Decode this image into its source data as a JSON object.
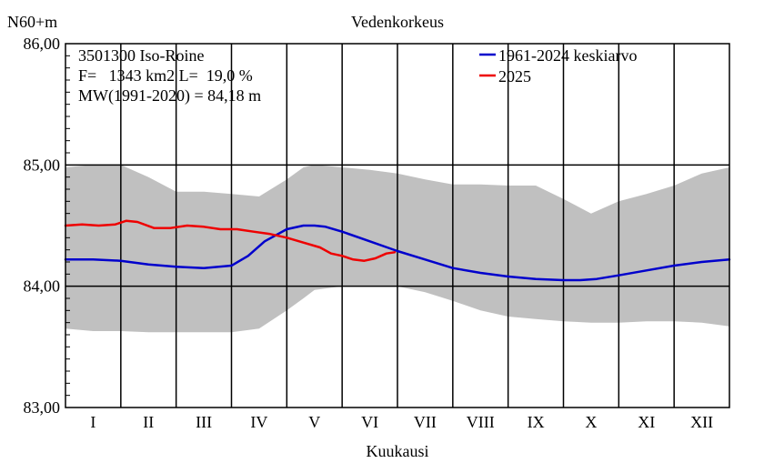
{
  "chart_data": {
    "type": "line",
    "title": "Vedenkorkeus",
    "ylabel": "N60+m",
    "xlabel": "Kuukausi",
    "ylim": [
      83.0,
      86.0
    ],
    "y_ticks": [
      "83,00",
      "84,00",
      "85,00",
      "86,00"
    ],
    "x_range": [
      0,
      12
    ],
    "months": [
      "I",
      "II",
      "III",
      "IV",
      "V",
      "VI",
      "VII",
      "VIII",
      "IX",
      "X",
      "XI",
      "XII"
    ],
    "info": {
      "station": "3501300 Iso-Roine",
      "area": "F=   1343 km2 L=  19,0 %",
      "mw": "MW(1991-2020) = 84,18 m"
    },
    "envelope": {
      "x": [
        0,
        0.5,
        1,
        1.5,
        2,
        2.5,
        3,
        3.5,
        4,
        4.3,
        4.5,
        5,
        5.5,
        6,
        6.5,
        7,
        7.5,
        8,
        8.5,
        9,
        9.5,
        10,
        10.5,
        11,
        11.5,
        12
      ],
      "upper": [
        84.98,
        85.0,
        85.0,
        84.9,
        84.78,
        84.78,
        84.76,
        84.74,
        84.88,
        84.98,
        85.0,
        84.98,
        84.96,
        84.93,
        84.88,
        84.84,
        84.84,
        84.83,
        84.83,
        84.72,
        84.6,
        84.7,
        84.76,
        84.83,
        84.93,
        84.98
      ],
      "lower": [
        83.65,
        83.63,
        83.63,
        83.62,
        83.62,
        83.62,
        83.62,
        83.65,
        83.8,
        83.9,
        83.97,
        84.0,
        84.0,
        84.0,
        83.95,
        83.88,
        83.8,
        83.75,
        83.73,
        83.71,
        83.7,
        83.7,
        83.71,
        83.71,
        83.7,
        83.67
      ]
    },
    "series": [
      {
        "name": "1961-2024 keskiarvo",
        "color": "#0000cc",
        "x": [
          0,
          0.5,
          1,
          1.5,
          2,
          2.5,
          3,
          3.3,
          3.6,
          4,
          4.3,
          4.5,
          4.7,
          5,
          5.5,
          6,
          6.5,
          7,
          7.5,
          8,
          8.5,
          9,
          9.3,
          9.6,
          10,
          10.5,
          11,
          11.5,
          12
        ],
        "y": [
          84.22,
          84.22,
          84.21,
          84.18,
          84.16,
          84.15,
          84.17,
          84.25,
          84.37,
          84.47,
          84.5,
          84.5,
          84.49,
          84.45,
          84.37,
          84.29,
          84.22,
          84.15,
          84.11,
          84.08,
          84.06,
          84.05,
          84.05,
          84.06,
          84.09,
          84.13,
          84.17,
          84.2,
          84.22
        ]
      },
      {
        "name": "2025",
        "color": "#ee0000",
        "x": [
          0,
          0.3,
          0.6,
          0.9,
          1.1,
          1.3,
          1.6,
          1.9,
          2.2,
          2.5,
          2.8,
          3.1,
          3.4,
          3.7,
          4.0,
          4.3,
          4.6,
          4.8,
          5.0,
          5.2,
          5.4,
          5.6,
          5.8,
          5.95
        ],
        "y": [
          84.5,
          84.51,
          84.5,
          84.51,
          84.54,
          84.53,
          84.48,
          84.48,
          84.5,
          84.49,
          84.47,
          84.47,
          84.45,
          84.43,
          84.4,
          84.36,
          84.32,
          84.27,
          84.25,
          84.22,
          84.21,
          84.23,
          84.27,
          84.28
        ]
      }
    ]
  },
  "colors": {
    "envelope": "#c0c0c0",
    "grid": "#000000"
  }
}
